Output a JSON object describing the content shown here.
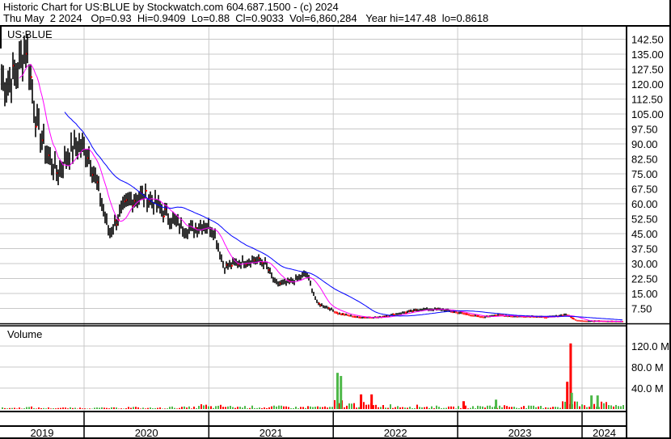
{
  "header": {
    "title": "Historic Chart for US:BLUE by Stockwatch.com 604.687.1500 - (c) 2024",
    "quote": "Thu May  2 2024   Op=0.93  Hi=0.9409  Lo=0.88  Cl=0.9033  Vol=6,860,284   Year hi=147.48  lo=0.8618"
  },
  "chart_data": [
    {
      "type": "line",
      "title": "US:BLUE",
      "ylim": [
        0,
        142.5
      ],
      "yticks": [
        "142.50",
        "135.00",
        "127.50",
        "120.00",
        "112.50",
        "105.00",
        "97.50",
        "90.00",
        "82.50",
        "75.00",
        "67.50",
        "60.00",
        "52.50",
        "45.00",
        "37.50",
        "30.00",
        "22.50",
        "15.00",
        "7.50"
      ],
      "ytick_values": [
        142.5,
        135,
        127.5,
        120,
        112.5,
        105,
        97.5,
        90,
        82.5,
        75,
        67.5,
        60,
        52.5,
        45,
        37.5,
        30,
        22.5,
        15,
        7.5
      ],
      "grid": true,
      "series_colors": {
        "price": "#000000",
        "short_ma": "#ff00ff",
        "long_ma": "#0000ff",
        "down_marks": "#ff0000"
      },
      "x": [
        "2019-04",
        "2019-05",
        "2019-06",
        "2019-07",
        "2019-08",
        "2019-09",
        "2019-10",
        "2019-11",
        "2019-12",
        "2020-01",
        "2020-02",
        "2020-03",
        "2020-04",
        "2020-05",
        "2020-06",
        "2020-07",
        "2020-08",
        "2020-09",
        "2020-10",
        "2020-11",
        "2020-12",
        "2021-01",
        "2021-02",
        "2021-03",
        "2021-04",
        "2021-05",
        "2021-06",
        "2021-07",
        "2021-08",
        "2021-09",
        "2021-10",
        "2021-11",
        "2021-12",
        "2022-01",
        "2022-02",
        "2022-03",
        "2022-04",
        "2022-05",
        "2022-06",
        "2022-07",
        "2022-08",
        "2022-09",
        "2022-10",
        "2022-11",
        "2022-12",
        "2023-01",
        "2023-02",
        "2023-03",
        "2023-04",
        "2023-05",
        "2023-06",
        "2023-07",
        "2023-08",
        "2023-09",
        "2023-10",
        "2023-11",
        "2023-12",
        "2024-01",
        "2024-02",
        "2024-03",
        "2024-04"
      ],
      "close": [
        130,
        120,
        125,
        140,
        100,
        85,
        75,
        85,
        90,
        85,
        65,
        45,
        55,
        62,
        64,
        62,
        57,
        52,
        48,
        47,
        50,
        47,
        28,
        30,
        31,
        32,
        30,
        20,
        20,
        22,
        25,
        10,
        8,
        5,
        4,
        3,
        3,
        3,
        4,
        5,
        6,
        7,
        7,
        7,
        6,
        5,
        4,
        3,
        4,
        4,
        3.5,
        3.5,
        3.5,
        3,
        3.5,
        4.5,
        1.5,
        1,
        1.2,
        1,
        0.9
      ]
    },
    {
      "type": "bar",
      "title": "Volume",
      "ylim": [
        0,
        140000000
      ],
      "yticks": [
        "120.0 M",
        "80.0 M",
        "40.0 M"
      ],
      "ytick_values": [
        120000000,
        80000000,
        40000000
      ],
      "colors": {
        "up": "#4db848",
        "down": "#ff0000"
      },
      "baseline_monthly_millions": [
        2,
        2,
        2,
        3,
        2,
        2,
        2,
        2,
        2,
        2,
        2,
        2,
        2,
        3,
        2,
        2,
        2,
        3,
        3,
        3,
        6,
        4,
        5,
        4,
        4,
        4,
        3,
        4,
        4,
        3,
        4,
        4,
        3,
        12,
        8,
        8,
        7,
        6,
        6,
        5,
        5,
        5,
        4,
        4,
        3,
        4,
        4,
        5,
        5,
        5,
        5,
        4,
        4,
        4,
        5,
        12,
        10,
        9,
        9,
        8,
        7
      ],
      "spikes": [
        {
          "date": "2022-01-10",
          "value_m": 69,
          "dir": "up"
        },
        {
          "date": "2022-01-20",
          "value_m": 63,
          "dir": "up"
        },
        {
          "date": "2022-03-20",
          "value_m": 28,
          "dir": "down"
        },
        {
          "date": "2022-04-20",
          "value_m": 28,
          "dir": "down"
        },
        {
          "date": "2023-01-15",
          "value_m": 15,
          "dir": "down"
        },
        {
          "date": "2023-04-20",
          "value_m": 18,
          "dir": "up"
        },
        {
          "date": "2023-11-15",
          "value_m": 52,
          "dir": "down"
        },
        {
          "date": "2023-11-25",
          "value_m": 125,
          "dir": "down"
        },
        {
          "date": "2023-11-28",
          "value_m": 31,
          "dir": "up"
        },
        {
          "date": "2024-01-25",
          "value_m": 26,
          "dir": "up"
        },
        {
          "date": "2024-02-12",
          "value_m": 26,
          "dir": "up"
        }
      ]
    }
  ],
  "years": [
    "2019",
    "2020",
    "2021",
    "2022",
    "2023",
    "2024"
  ]
}
